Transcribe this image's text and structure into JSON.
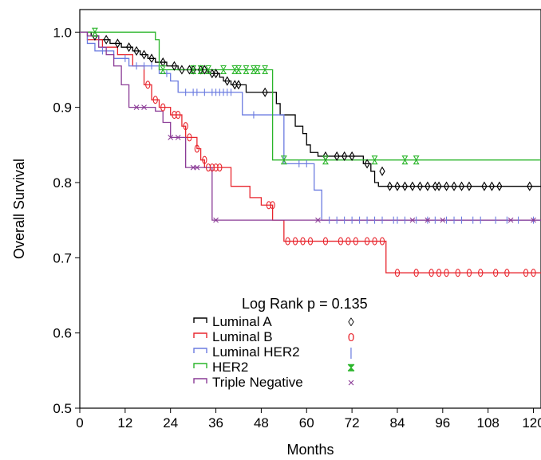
{
  "chart_data": {
    "type": "line",
    "step": true,
    "xlabel": "Months",
    "ylabel": "Overall Survival",
    "xlim": [
      0,
      122
    ],
    "ylim": [
      0.5,
      1.03
    ],
    "xticks": [
      0,
      12,
      24,
      36,
      48,
      60,
      72,
      84,
      96,
      108,
      120
    ],
    "yticks": [
      0.5,
      0.6,
      0.7,
      0.8,
      0.9,
      1.0
    ],
    "grid": false,
    "legend_position": "bottom-center",
    "annotation": "Log Rank p = 0.135",
    "series": [
      {
        "name": "Luminal A",
        "color": "#000000",
        "marker_symbol": "◊",
        "marker": "diamond",
        "steps": [
          [
            0,
            1.0
          ],
          [
            3,
            0.995
          ],
          [
            5,
            0.99
          ],
          [
            8,
            0.985
          ],
          [
            11,
            0.98
          ],
          [
            14,
            0.975
          ],
          [
            16,
            0.97
          ],
          [
            18,
            0.965
          ],
          [
            20,
            0.96
          ],
          [
            23,
            0.955
          ],
          [
            26,
            0.95
          ],
          [
            34,
            0.945
          ],
          [
            37,
            0.94
          ],
          [
            38,
            0.935
          ],
          [
            40,
            0.93
          ],
          [
            44,
            0.92
          ],
          [
            52,
            0.905
          ],
          [
            53,
            0.89
          ],
          [
            57,
            0.875
          ],
          [
            59,
            0.865
          ],
          [
            60,
            0.85
          ],
          [
            61,
            0.84
          ],
          [
            63,
            0.835
          ],
          [
            75,
            0.825
          ],
          [
            77,
            0.815
          ],
          [
            78,
            0.8
          ],
          [
            79,
            0.795
          ],
          [
            122,
            0.795
          ]
        ],
        "censored": [
          [
            4,
            0.995
          ],
          [
            7,
            0.99
          ],
          [
            10,
            0.985
          ],
          [
            13,
            0.98
          ],
          [
            15,
            0.975
          ],
          [
            17,
            0.97
          ],
          [
            19,
            0.965
          ],
          [
            22,
            0.96
          ],
          [
            25,
            0.955
          ],
          [
            27,
            0.95
          ],
          [
            29,
            0.95
          ],
          [
            30,
            0.95
          ],
          [
            32,
            0.95
          ],
          [
            33,
            0.95
          ],
          [
            35,
            0.945
          ],
          [
            36,
            0.945
          ],
          [
            39,
            0.935
          ],
          [
            41,
            0.93
          ],
          [
            42,
            0.93
          ],
          [
            49,
            0.92
          ],
          [
            65,
            0.835
          ],
          [
            68,
            0.835
          ],
          [
            70,
            0.835
          ],
          [
            72,
            0.835
          ],
          [
            76,
            0.825
          ],
          [
            80,
            0.815
          ],
          [
            82,
            0.795
          ],
          [
            84,
            0.795
          ],
          [
            86,
            0.795
          ],
          [
            88,
            0.795
          ],
          [
            90,
            0.795
          ],
          [
            92,
            0.795
          ],
          [
            94,
            0.795
          ],
          [
            95,
            0.795
          ],
          [
            97,
            0.795
          ],
          [
            99,
            0.795
          ],
          [
            101,
            0.795
          ],
          [
            103,
            0.795
          ],
          [
            107,
            0.795
          ],
          [
            109,
            0.795
          ],
          [
            111,
            0.795
          ],
          [
            119,
            0.795
          ]
        ]
      },
      {
        "name": "Luminal B",
        "color": "#e8262e",
        "marker_symbol": "0",
        "marker": "circle",
        "steps": [
          [
            0,
            1.0
          ],
          [
            2,
            0.99
          ],
          [
            6,
            0.98
          ],
          [
            10,
            0.97
          ],
          [
            14,
            0.955
          ],
          [
            17,
            0.93
          ],
          [
            19,
            0.91
          ],
          [
            21,
            0.9
          ],
          [
            24,
            0.89
          ],
          [
            27,
            0.875
          ],
          [
            28,
            0.86
          ],
          [
            31,
            0.845
          ],
          [
            32,
            0.83
          ],
          [
            33,
            0.82
          ],
          [
            40,
            0.795
          ],
          [
            45,
            0.78
          ],
          [
            48,
            0.77
          ],
          [
            51,
            0.75
          ],
          [
            54,
            0.722
          ],
          [
            81,
            0.68
          ],
          [
            122,
            0.68
          ]
        ],
        "censored": [
          [
            18,
            0.93
          ],
          [
            20,
            0.91
          ],
          [
            22,
            0.9
          ],
          [
            25,
            0.89
          ],
          [
            26,
            0.89
          ],
          [
            28,
            0.875
          ],
          [
            29,
            0.86
          ],
          [
            31,
            0.845
          ],
          [
            33,
            0.83
          ],
          [
            34,
            0.82
          ],
          [
            35,
            0.82
          ],
          [
            36,
            0.82
          ],
          [
            37,
            0.82
          ],
          [
            50,
            0.77
          ],
          [
            51,
            0.77
          ],
          [
            55,
            0.722
          ],
          [
            57,
            0.722
          ],
          [
            59,
            0.722
          ],
          [
            61,
            0.722
          ],
          [
            65,
            0.722
          ],
          [
            69,
            0.722
          ],
          [
            71,
            0.722
          ],
          [
            73,
            0.722
          ],
          [
            76,
            0.722
          ],
          [
            78,
            0.722
          ],
          [
            80,
            0.722
          ],
          [
            84,
            0.68
          ],
          [
            89,
            0.68
          ],
          [
            93,
            0.68
          ],
          [
            95,
            0.68
          ],
          [
            97,
            0.68
          ],
          [
            100,
            0.68
          ],
          [
            103,
            0.68
          ],
          [
            106,
            0.68
          ],
          [
            110,
            0.68
          ],
          [
            113,
            0.68
          ],
          [
            118,
            0.68
          ],
          [
            120,
            0.68
          ]
        ]
      },
      {
        "name": "Luminal HER2",
        "color": "#6b7be0",
        "marker_symbol": "|",
        "marker": "tick",
        "steps": [
          [
            0,
            1.0
          ],
          [
            2,
            0.985
          ],
          [
            4,
            0.975
          ],
          [
            9,
            0.965
          ],
          [
            13,
            0.955
          ],
          [
            21,
            0.945
          ],
          [
            24,
            0.935
          ],
          [
            26,
            0.92
          ],
          [
            43,
            0.89
          ],
          [
            54,
            0.825
          ],
          [
            62,
            0.79
          ],
          [
            64,
            0.75
          ],
          [
            122,
            0.75
          ]
        ],
        "censored": [
          [
            6,
            0.975
          ],
          [
            12,
            0.965
          ],
          [
            15,
            0.955
          ],
          [
            17,
            0.955
          ],
          [
            19,
            0.955
          ],
          [
            23,
            0.945
          ],
          [
            28,
            0.92
          ],
          [
            30,
            0.92
          ],
          [
            31,
            0.92
          ],
          [
            33,
            0.92
          ],
          [
            35,
            0.92
          ],
          [
            36,
            0.92
          ],
          [
            37,
            0.92
          ],
          [
            38,
            0.92
          ],
          [
            39,
            0.92
          ],
          [
            40,
            0.92
          ],
          [
            46,
            0.89
          ],
          [
            58,
            0.825
          ],
          [
            60,
            0.825
          ],
          [
            66,
            0.75
          ],
          [
            68,
            0.75
          ],
          [
            70,
            0.75
          ],
          [
            72,
            0.75
          ],
          [
            74,
            0.75
          ],
          [
            76,
            0.75
          ],
          [
            78,
            0.75
          ],
          [
            80,
            0.75
          ],
          [
            83,
            0.75
          ],
          [
            84,
            0.75
          ],
          [
            86,
            0.75
          ],
          [
            89,
            0.75
          ],
          [
            92,
            0.75
          ],
          [
            94,
            0.75
          ],
          [
            97,
            0.75
          ],
          [
            99,
            0.75
          ],
          [
            101,
            0.75
          ],
          [
            104,
            0.75
          ],
          [
            106,
            0.75
          ],
          [
            110,
            0.75
          ],
          [
            113,
            0.75
          ],
          [
            116,
            0.75
          ],
          [
            120,
            0.75
          ]
        ]
      },
      {
        "name": "HER2",
        "color": "#2ab52a",
        "marker_symbol": "⧗",
        "marker": "hourglass",
        "steps": [
          [
            0,
            1.0
          ],
          [
            20,
            0.99
          ],
          [
            21,
            0.95
          ],
          [
            51,
            0.83
          ],
          [
            122,
            0.83
          ]
        ],
        "censored": [
          [
            4,
            1.0
          ],
          [
            22,
            0.95
          ],
          [
            30,
            0.95
          ],
          [
            32,
            0.95
          ],
          [
            34,
            0.95
          ],
          [
            38,
            0.95
          ],
          [
            41,
            0.95
          ],
          [
            42,
            0.95
          ],
          [
            44,
            0.95
          ],
          [
            46,
            0.95
          ],
          [
            47,
            0.95
          ],
          [
            49,
            0.95
          ],
          [
            54,
            0.83
          ],
          [
            65,
            0.83
          ],
          [
            78,
            0.83
          ],
          [
            86,
            0.83
          ],
          [
            89,
            0.83
          ]
        ]
      },
      {
        "name": "Triple Negative",
        "color": "#8a3b96",
        "marker_symbol": "×",
        "marker": "x",
        "steps": [
          [
            0,
            1.0
          ],
          [
            2,
            0.995
          ],
          [
            5,
            0.98
          ],
          [
            7,
            0.97
          ],
          [
            9,
            0.955
          ],
          [
            11,
            0.93
          ],
          [
            13,
            0.9
          ],
          [
            20,
            0.895
          ],
          [
            22,
            0.88
          ],
          [
            24,
            0.86
          ],
          [
            28,
            0.82
          ],
          [
            35,
            0.75
          ],
          [
            122,
            0.75
          ]
        ],
        "censored": [
          [
            15,
            0.9
          ],
          [
            17,
            0.9
          ],
          [
            24,
            0.86
          ],
          [
            26,
            0.86
          ],
          [
            30,
            0.82
          ],
          [
            31,
            0.82
          ],
          [
            36,
            0.75
          ],
          [
            63,
            0.75
          ],
          [
            88,
            0.75
          ],
          [
            92,
            0.75
          ],
          [
            96,
            0.75
          ],
          [
            114,
            0.75
          ],
          [
            120,
            0.75
          ]
        ]
      }
    ]
  }
}
